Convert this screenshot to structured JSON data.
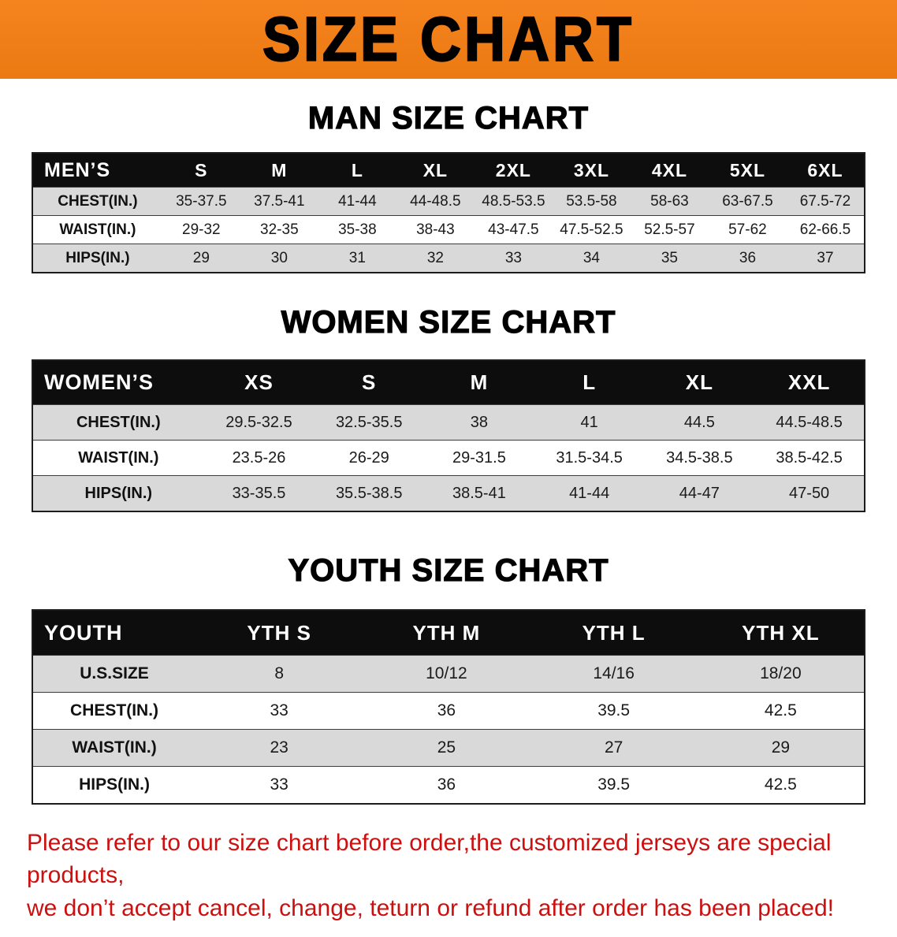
{
  "colors": {
    "banner-bg": "#f5831f",
    "banner-bg-dark": "#ec7a12",
    "table-header-bg": "#0d0d0d",
    "row-alt-bg": "#d9d9d9",
    "disclaimer-color": "#cc0f0f"
  },
  "banner": {
    "title": "SIZE CHART"
  },
  "sections": [
    {
      "heading": "MAN SIZE CHART",
      "table": {
        "header": [
          "MEN’S",
          "S",
          "M",
          "L",
          "XL",
          "2XL",
          "3XL",
          "4XL",
          "5XL",
          "6XL"
        ],
        "rows": [
          [
            "CHEST(IN.)",
            "35-37.5",
            "37.5-41",
            "41-44",
            "44-48.5",
            "48.5-53.5",
            "53.5-58",
            "58-63",
            "63-67.5",
            "67.5-72"
          ],
          [
            "WAIST(IN.)",
            "29-32",
            "32-35",
            "35-38",
            "38-43",
            "43-47.5",
            "47.5-52.5",
            "52.5-57",
            "57-62",
            "62-66.5"
          ],
          [
            "HIPS(IN.)",
            "29",
            "30",
            "31",
            "32",
            "33",
            "34",
            "35",
            "36",
            "37"
          ]
        ]
      }
    },
    {
      "heading": "WOMEN SIZE CHART",
      "table": {
        "header": [
          "WOMEN’S",
          "XS",
          "S",
          "M",
          "L",
          "XL",
          "XXL"
        ],
        "rows": [
          [
            "CHEST(IN.)",
            "29.5-32.5",
            "32.5-35.5",
            "38",
            "41",
            "44.5",
            "44.5-48.5"
          ],
          [
            "WAIST(IN.)",
            "23.5-26",
            "26-29",
            "29-31.5",
            "31.5-34.5",
            "34.5-38.5",
            "38.5-42.5"
          ],
          [
            "HIPS(IN.)",
            "33-35.5",
            "35.5-38.5",
            "38.5-41",
            "41-44",
            "44-47",
            "47-50"
          ]
        ]
      }
    },
    {
      "heading": "YOUTH SIZE CHART",
      "table": {
        "header": [
          "YOUTH",
          "YTH S",
          "YTH M",
          "YTH L",
          "YTH XL"
        ],
        "rows": [
          [
            "U.S.SIZE",
            "8",
            "10/12",
            "14/16",
            "18/20"
          ],
          [
            "CHEST(IN.)",
            "33",
            "36",
            "39.5",
            "42.5"
          ],
          [
            "WAIST(IN.)",
            "23",
            "25",
            "27",
            "29"
          ],
          [
            "HIPS(IN.)",
            "33",
            "36",
            "39.5",
            "42.5"
          ]
        ]
      }
    }
  ],
  "footer": {
    "line1": "Please refer to our size chart before order,the customized jerseys are special products,",
    "line2": "we don’t accept cancel, change, teturn or refund after order has been placed!"
  }
}
